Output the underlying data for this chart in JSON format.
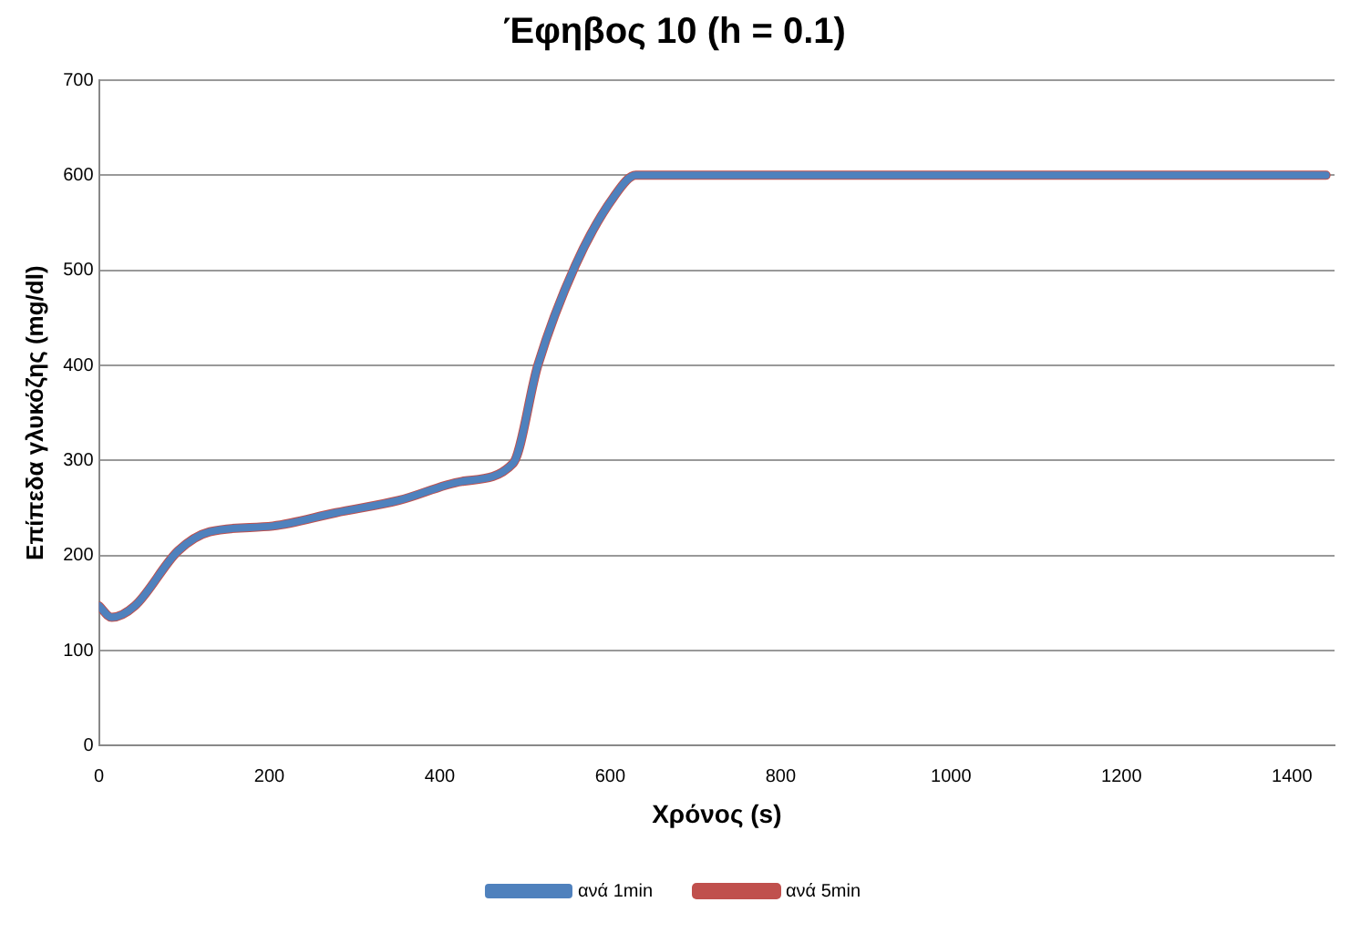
{
  "chart_data": {
    "type": "line",
    "title": "Έφηβος 10 (h = 0.1)",
    "xlabel": "Χρόνος (s)",
    "ylabel": "Επίπεδα γλυκόζης (mg/dl)",
    "xlim": [
      0,
      1450
    ],
    "xticks": [
      0,
      200,
      400,
      600,
      800,
      1000,
      1200,
      1400
    ],
    "ylim": [
      0,
      700
    ],
    "yticks": [
      0,
      100,
      200,
      300,
      400,
      500,
      600,
      700
    ],
    "grid": "y",
    "legend": "bottom",
    "marker": "none",
    "line_style": "solid",
    "series": [
      {
        "name": "ανά 1min",
        "color": "#4f81bd",
        "x": [
          0,
          15,
          42,
          93,
          130,
          204,
          278,
          352,
          426,
          486,
          515,
          559,
          604,
          630,
          1440
        ],
        "values": [
          147,
          135,
          147,
          205,
          225,
          231,
          245,
          258,
          278,
          297,
          400,
          505,
          577,
          600,
          600
        ]
      },
      {
        "name": "ανά 5min",
        "color": "#c0504d",
        "x": [
          0,
          15,
          42,
          93,
          130,
          204,
          278,
          352,
          426,
          486,
          515,
          559,
          604,
          630,
          1440
        ],
        "values": [
          147,
          135,
          147,
          205,
          225,
          231,
          245,
          258,
          278,
          297,
          400,
          505,
          577,
          600,
          600
        ]
      }
    ]
  }
}
